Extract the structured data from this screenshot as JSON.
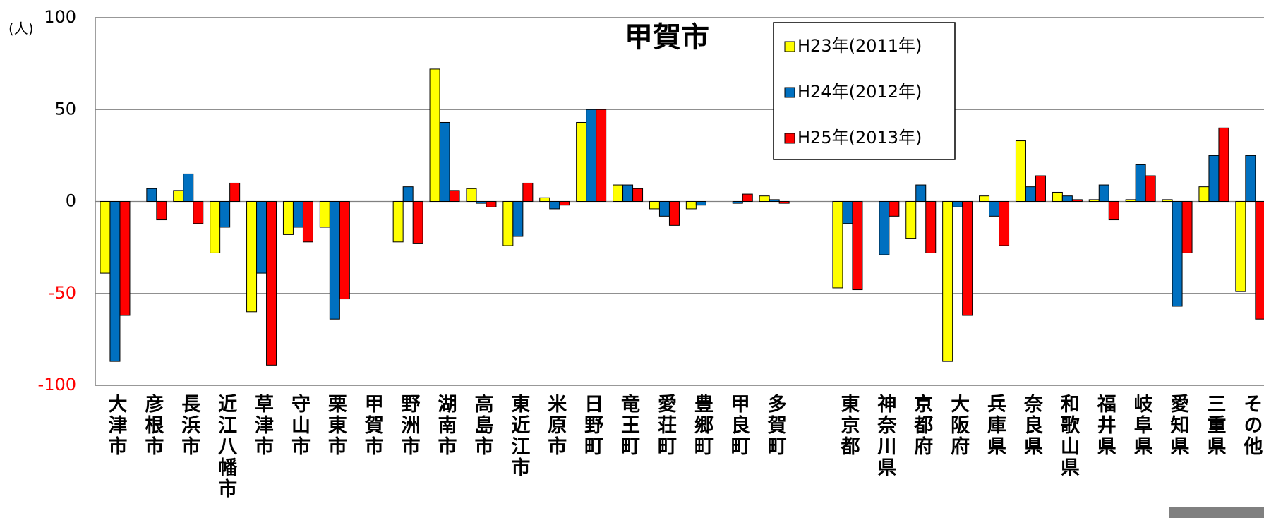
{
  "chart_data": {
    "type": "bar",
    "title": "甲賀市",
    "y_label": "(人)",
    "categories": [
      "大津市",
      "彦根市",
      "長浜市",
      "近江八幡市",
      "草津市",
      "守山市",
      "栗東市",
      "甲賀市",
      "野洲市",
      "湖南市",
      "高島市",
      "東近江市",
      "米原市",
      "日野町",
      "竜王町",
      "愛荘町",
      "豊郷町",
      "甲良町",
      "多賀町",
      null,
      "東京都",
      "神奈川県",
      "京都府",
      "大阪府",
      "兵庫県",
      "奈良県",
      "和歌山県",
      "福井県",
      "岐阜県",
      "愛知県",
      "三重県",
      "その他"
    ],
    "series": [
      {
        "name": "H23年(2011年)",
        "color": "#ffff00",
        "values": [
          -39,
          0,
          6,
          -28,
          -60,
          -18,
          -14,
          0,
          -22,
          72,
          7,
          -24,
          2,
          43,
          9,
          -4,
          -4,
          0,
          3,
          null,
          -47,
          0,
          -20,
          -87,
          3,
          33,
          5,
          1,
          1,
          1,
          8,
          -49
        ]
      },
      {
        "name": "H24年(2012年)",
        "color": "#0070c0",
        "values": [
          -87,
          7,
          15,
          -14,
          -39,
          -14,
          -64,
          0,
          8,
          43,
          -1,
          -19,
          -4,
          50,
          9,
          -8,
          -2,
          -1,
          1,
          null,
          -12,
          -29,
          9,
          -3,
          -8,
          8,
          3,
          9,
          20,
          -57,
          25,
          25
        ]
      },
      {
        "name": "H25年(2013年)",
        "color": "#ff0000",
        "values": [
          -62,
          -10,
          -12,
          10,
          -89,
          -22,
          -53,
          0,
          -23,
          6,
          -3,
          10,
          -2,
          50,
          7,
          -13,
          0,
          4,
          -1,
          null,
          -48,
          -8,
          -28,
          -62,
          -24,
          14,
          1,
          -10,
          14,
          -28,
          40,
          -64
        ]
      }
    ],
    "ylim": [
      -100,
      100
    ],
    "yticks": [
      -100,
      -50,
      0,
      50,
      100
    ],
    "grid": true
  }
}
